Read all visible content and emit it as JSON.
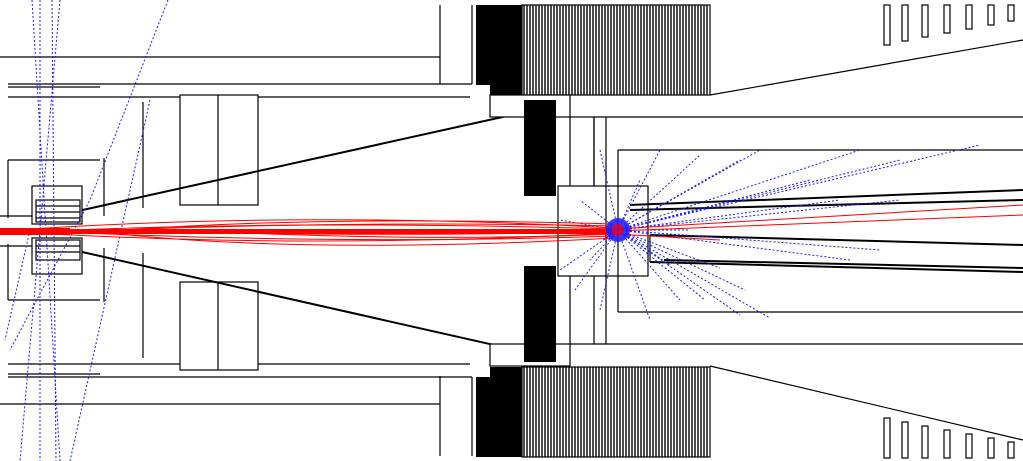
{
  "colors": {
    "background": "#ffffff",
    "geometry": "#000000",
    "charged_tracks": "#ff0000",
    "neutral_tracks": "#1a1aff"
  },
  "description_icons": {
    "geometry": "detector-geometry",
    "tracks": "particle-tracks"
  }
}
